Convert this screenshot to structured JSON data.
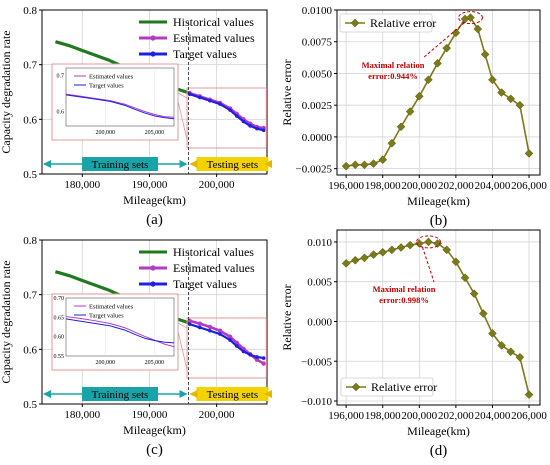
{
  "chart_data": [
    {
      "panel": "(a)",
      "type": "line",
      "xlabel": "Mileage(km)",
      "ylabel": "Capacity degradation rate",
      "xlim": [
        174000,
        207500
      ],
      "ylim": [
        0.5,
        0.8
      ],
      "xticks": [
        180000,
        190000,
        200000
      ],
      "xtick_labels": [
        "180,000",
        "190,000",
        "200,000"
      ],
      "yticks": [
        0.5,
        0.6,
        0.7,
        0.8
      ],
      "ytick_labels": [
        "0.5",
        "0.6",
        "0.7",
        "0.8"
      ],
      "grid": true,
      "legend": "top-right",
      "series": [
        {
          "name": "Historical values",
          "color": "#1f7a1f",
          "x": [
            176000,
            178000,
            180000,
            182000,
            184000,
            186000,
            188000,
            190000,
            192000,
            194000,
            196000
          ],
          "y": [
            0.742,
            0.735,
            0.726,
            0.717,
            0.708,
            0.697,
            0.687,
            0.676,
            0.665,
            0.656,
            0.648
          ]
        },
        {
          "name": "Estimated values",
          "color": "#b23bc4",
          "x": [
            196000,
            197500,
            199000,
            200500,
            202000,
            203000,
            204000,
            205000,
            206000,
            207000
          ],
          "y": [
            0.648,
            0.642,
            0.636,
            0.63,
            0.62,
            0.61,
            0.6,
            0.592,
            0.586,
            0.584
          ]
        },
        {
          "name": "Target values",
          "color": "#1f1fe0",
          "x": [
            196000,
            197500,
            199000,
            200500,
            202000,
            203000,
            204000,
            205000,
            206000,
            207000
          ],
          "y": [
            0.646,
            0.64,
            0.634,
            0.628,
            0.617,
            0.606,
            0.596,
            0.588,
            0.583,
            0.58
          ]
        }
      ],
      "inset": {
        "xticks": [
          200000,
          205000
        ],
        "xtick_labels": [
          "200,000",
          "205,000"
        ],
        "yticks": [
          0.6,
          0.7
        ],
        "ytick_labels": [
          "0.6",
          "0.7"
        ],
        "xlim": [
          196000,
          207000
        ],
        "ylim": [
          0.56,
          0.72
        ],
        "legend": [
          "Estimated values",
          "Target values"
        ]
      },
      "annotations": [
        "Training sets",
        "Testing sets"
      ]
    },
    {
      "panel": "(b)",
      "type": "line",
      "xlabel": "Mileage(km)",
      "ylabel": "Relative error",
      "xlim": [
        195500,
        206600
      ],
      "ylim": [
        -0.003,
        0.01
      ],
      "xticks": [
        196000,
        198000,
        200000,
        202000,
        204000,
        206000
      ],
      "xtick_labels": [
        "196,000",
        "198,000",
        "200,000",
        "202,000",
        "204,000",
        "206,000"
      ],
      "yticks": [
        -0.0025,
        0.0,
        0.0025,
        0.005,
        0.0075,
        0.01
      ],
      "ytick_labels": [
        "−0.0025",
        "0.0000",
        "0.0025",
        "0.0050",
        "0.0075",
        "0.0100"
      ],
      "grid": true,
      "legend": "top-left",
      "series": [
        {
          "name": "Relative error",
          "color": "#7a7a1a",
          "x": [
            196000,
            196500,
            197000,
            197500,
            198000,
            198500,
            199000,
            199500,
            200000,
            200500,
            201000,
            201500,
            202000,
            202500,
            202800,
            203200,
            203600,
            204000,
            204500,
            205000,
            205500,
            206000
          ],
          "y": [
            -0.0023,
            -0.0022,
            -0.0022,
            -0.0021,
            -0.0018,
            -0.0005,
            0.0008,
            0.002,
            0.0032,
            0.0045,
            0.0058,
            0.007,
            0.0082,
            0.0093,
            0.0094,
            0.0085,
            0.0065,
            0.0045,
            0.0035,
            0.003,
            0.0025,
            -0.0013
          ]
        }
      ],
      "annotations": [
        "Maximal relation",
        "error:0.944%"
      ]
    },
    {
      "panel": "(c)",
      "type": "line",
      "xlabel": "Mileage(km)",
      "ylabel": "Capacity degradation rate",
      "xlim": [
        174000,
        207500
      ],
      "ylim": [
        0.5,
        0.8
      ],
      "xticks": [
        180000,
        190000,
        200000
      ],
      "xtick_labels": [
        "180,000",
        "190,000",
        "200,000"
      ],
      "yticks": [
        0.5,
        0.6,
        0.7,
        0.8
      ],
      "ytick_labels": [
        "0.5",
        "0.6",
        "0.7",
        "0.8"
      ],
      "grid": true,
      "legend": "top-right",
      "series": [
        {
          "name": "Historical values",
          "color": "#1f7a1f",
          "x": [
            176000,
            178000,
            180000,
            182000,
            184000,
            186000,
            188000,
            190000,
            192000,
            194000,
            196000
          ],
          "y": [
            0.742,
            0.735,
            0.726,
            0.717,
            0.708,
            0.697,
            0.687,
            0.676,
            0.665,
            0.656,
            0.648
          ]
        },
        {
          "name": "Estimated values",
          "color": "#b23bc4",
          "x": [
            196000,
            197500,
            199000,
            200500,
            202000,
            203000,
            204000,
            205000,
            206000,
            207000
          ],
          "y": [
            0.652,
            0.647,
            0.641,
            0.634,
            0.623,
            0.612,
            0.601,
            0.591,
            0.581,
            0.574
          ]
        },
        {
          "name": "Target values",
          "color": "#1f1fe0",
          "x": [
            196000,
            197500,
            199000,
            200500,
            202000,
            203000,
            204000,
            205000,
            206000,
            207000
          ],
          "y": [
            0.646,
            0.64,
            0.634,
            0.628,
            0.617,
            0.606,
            0.596,
            0.59,
            0.586,
            0.584
          ]
        }
      ],
      "inset": {
        "xticks": [
          200000,
          205000
        ],
        "xtick_labels": [
          "200,000",
          "205,000"
        ],
        "yticks": [
          0.55,
          0.6,
          0.65,
          0.7
        ],
        "ytick_labels": [
          "0.55",
          "0.60",
          "0.65",
          "0.70"
        ],
        "xlim": [
          196000,
          207000
        ],
        "ylim": [
          0.55,
          0.7
        ],
        "legend": [
          "Estimated values",
          "Target values"
        ]
      },
      "annotations": [
        "Training sets",
        "Testing sets"
      ]
    },
    {
      "panel": "(d)",
      "type": "line",
      "xlabel": "Mileage(km)",
      "ylabel": "Relative error",
      "xlim": [
        195500,
        206600
      ],
      "ylim": [
        -0.0105,
        0.0115
      ],
      "xticks": [
        196000,
        198000,
        200000,
        202000,
        204000,
        206000
      ],
      "xtick_labels": [
        "196,000",
        "198,000",
        "200,000",
        "202,000",
        "204,000",
        "206,000"
      ],
      "yticks": [
        -0.01,
        -0.005,
        0.0,
        0.005,
        0.01
      ],
      "ytick_labels": [
        "−0.010",
        "−0.005",
        "0.000",
        "0.005",
        "0.010"
      ],
      "grid": true,
      "legend": "bottom-left",
      "series": [
        {
          "name": "Relative error",
          "color": "#7a7a1a",
          "x": [
            196000,
            196500,
            197000,
            197500,
            198000,
            198500,
            199000,
            199500,
            200000,
            200500,
            201000,
            201500,
            202000,
            202500,
            203000,
            203500,
            204000,
            204500,
            205000,
            205500,
            206000
          ],
          "y": [
            0.0073,
            0.0077,
            0.008,
            0.0084,
            0.0087,
            0.009,
            0.0093,
            0.0096,
            0.0098,
            0.01,
            0.0098,
            0.009,
            0.0075,
            0.0055,
            0.0035,
            0.001,
            -0.0015,
            -0.003,
            -0.0038,
            -0.0045,
            -0.0092
          ]
        }
      ],
      "annotations": [
        "Maximal relation",
        "error:0.998%"
      ]
    }
  ],
  "colors": {
    "historical": "#1f7a1f",
    "estimated": "#b23bc4",
    "target": "#1f1fe0",
    "relative_error": "#7a7a1a",
    "training_box": "#1aa3a8",
    "testing_box": "#f2d200",
    "annotation": "#c00000"
  }
}
